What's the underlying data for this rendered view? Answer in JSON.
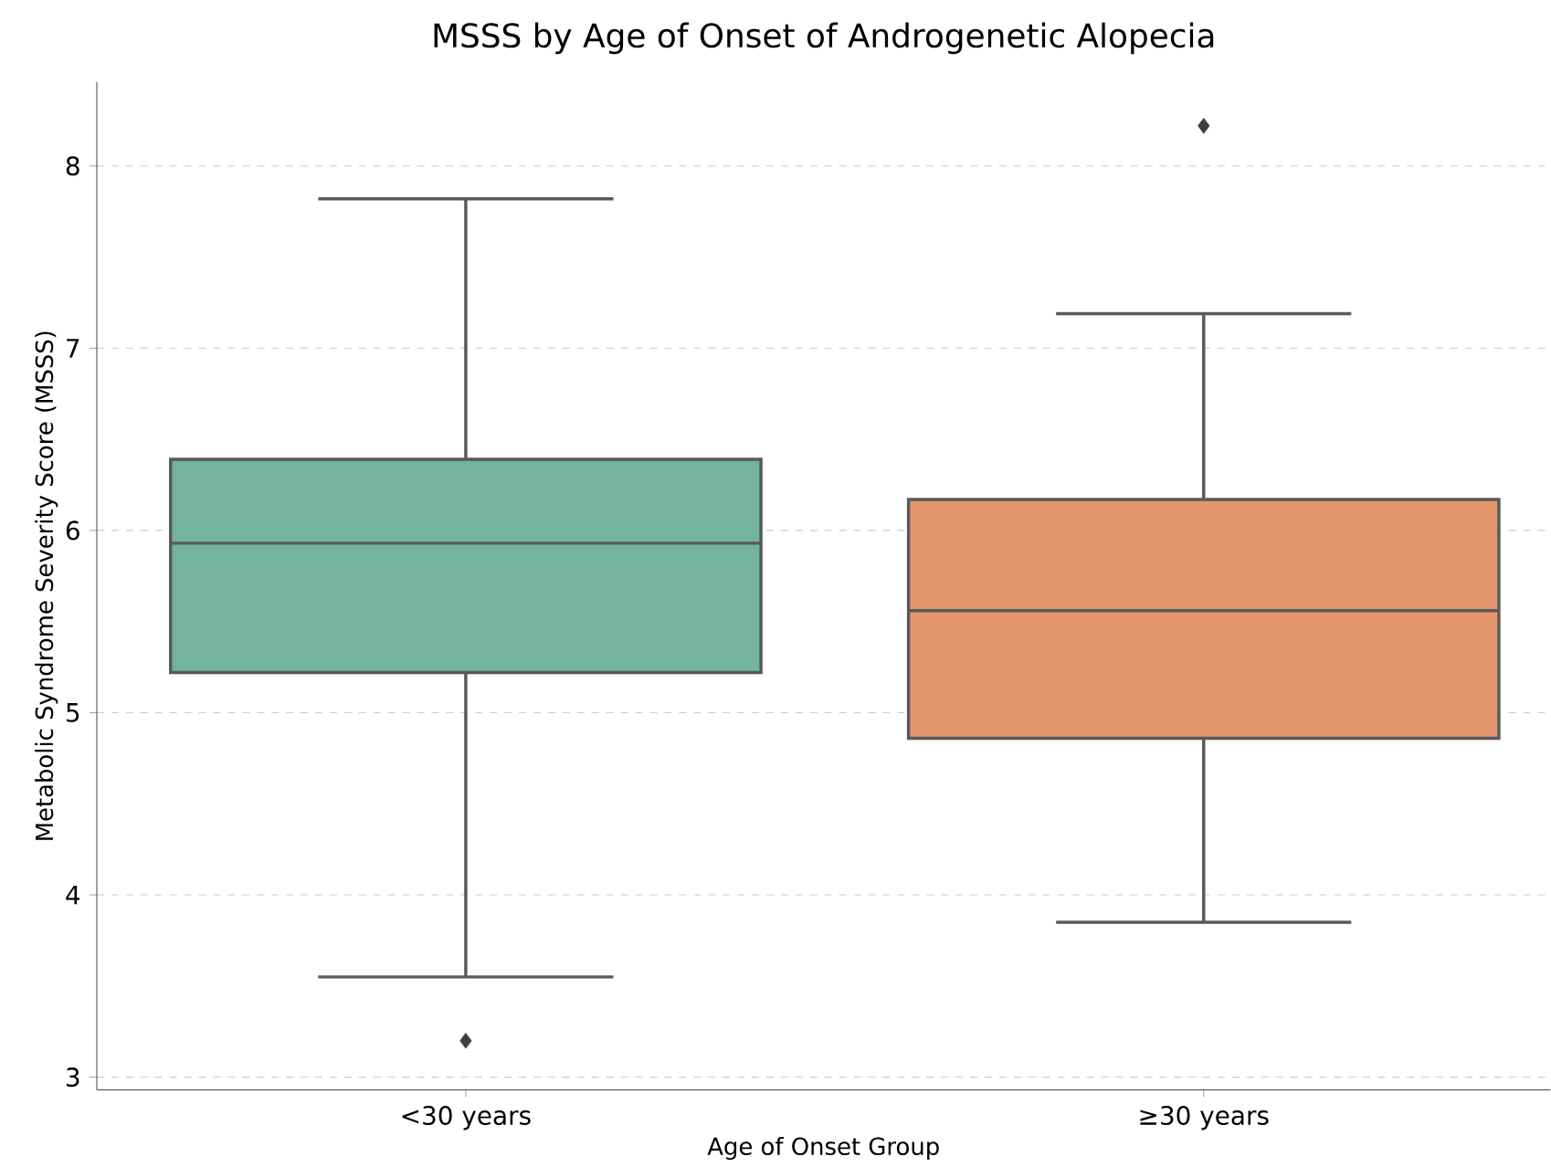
{
  "chart_data": {
    "type": "box",
    "title": "MSSS by Age of Onset of Androgenetic Alopecia",
    "xlabel": "Age of Onset Group",
    "ylabel": "Metabolic Syndrome Severity Score (MSSS)",
    "categories": [
      "<30 years",
      "≥30 years"
    ],
    "colors": [
      "#73b3a0",
      "#e6966f"
    ],
    "boxes": [
      {
        "low": 3.55,
        "q1": 5.22,
        "median": 5.93,
        "q3": 6.39,
        "high": 7.82,
        "outliers": [
          3.2
        ]
      },
      {
        "low": 3.85,
        "q1": 4.86,
        "median": 5.56,
        "q3": 6.17,
        "high": 7.19,
        "outliers": [
          8.22
        ]
      }
    ],
    "ylim": [
      2.93,
      8.46
    ],
    "yticks": [
      3,
      4,
      5,
      6,
      7,
      8
    ],
    "grid": "y"
  }
}
